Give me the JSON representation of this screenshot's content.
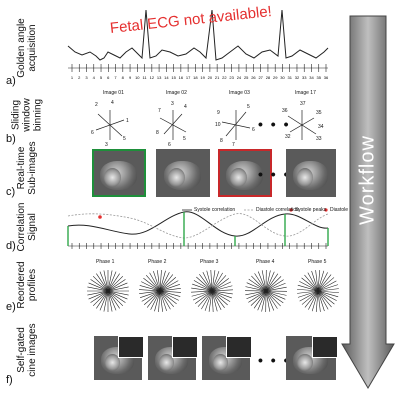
{
  "title_ecg": "Fetal ECG not available!",
  "workflow": "Workflow",
  "rows": [
    {
      "letter": "a)",
      "label": "Golden angle acquisition"
    },
    {
      "letter": "b)",
      "label": "Sliding window binning"
    },
    {
      "letter": "c)",
      "label": "Real-time Sub-images"
    },
    {
      "letter": "d)",
      "label": "Correlation Signal"
    },
    {
      "letter": "e)",
      "label": "Reordered profiles"
    },
    {
      "letter": "f)",
      "label": "Self-gated cine images"
    }
  ],
  "tick_numbers": [
    "1",
    "2",
    "3",
    "4",
    "5",
    "6",
    "7",
    "8",
    "9",
    "10",
    "11",
    "12",
    "13",
    "14",
    "15",
    "16",
    "17",
    "18",
    "19",
    "20",
    "21",
    "22",
    "23",
    "24",
    "25",
    "26",
    "27",
    "28",
    "29",
    "30",
    "31",
    "32",
    "33",
    "34",
    "35",
    "36"
  ],
  "binning_images": [
    {
      "title": "Image 01",
      "labels": [
        "2",
        "3",
        "4",
        "1",
        "6",
        "5"
      ]
    },
    {
      "title": "Image 02",
      "labels": [
        "7",
        "8",
        "6",
        "5",
        "4",
        "3"
      ]
    },
    {
      "title": "Image 03",
      "labels": [
        "9",
        "10",
        "8",
        "7",
        "6",
        "5"
      ]
    },
    {
      "title": "Image 17",
      "labels": [
        "37",
        "36",
        "35",
        "34",
        "33",
        "32"
      ]
    }
  ],
  "ellipsis": "• • •",
  "legend": {
    "systole_corr": "Systole correlation",
    "diastole_corr": "Diastole correlation",
    "systole_peaks": "Systole peaks",
    "diastole_peaks": "Diastole peaks"
  },
  "phases": [
    "Phase 1",
    "Phase 2",
    "Phase 3",
    "Phase 4",
    "Phase 5"
  ],
  "colors": {
    "ecg_text": "#e53030",
    "frame_green": "#1e8f3a",
    "frame_red": "#c8282a",
    "systole_line": "#222222",
    "diastole_line": "#9a9a9a",
    "peak_red": "#e53030",
    "peak_green": "#2fa84a"
  }
}
